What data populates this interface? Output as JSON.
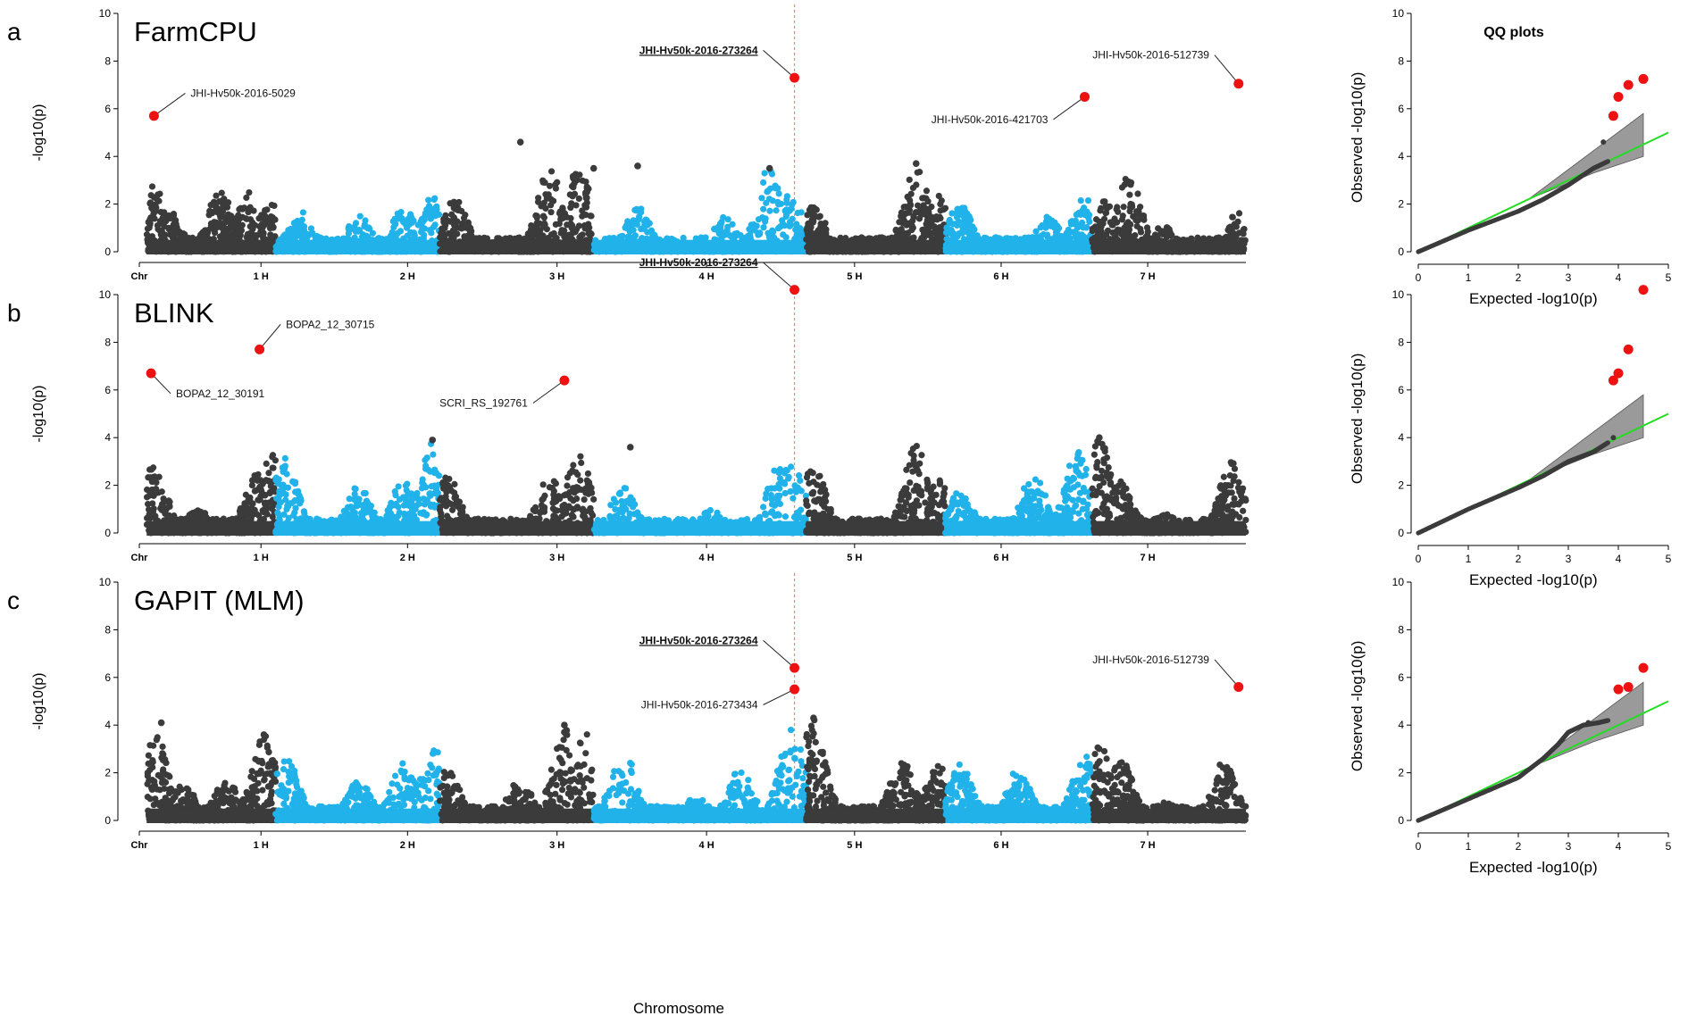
{
  "colors": {
    "odd": "#3b3b3b",
    "even": "#21b2ea",
    "sig": "#ee1111",
    "qq_line": "#22dd22",
    "qq_band": "#9a9a9a",
    "threshold": "#f08080"
  },
  "x_axis_label": "Chromosome",
  "qq_title": "QQ plots",
  "chart_data": [
    {
      "type": "scatter",
      "subtype": "manhattan",
      "letter": "a",
      "title": "FarmCPU",
      "ylabel": "-log10(p)",
      "ylim": [
        0,
        10
      ],
      "y_ticks": [
        0,
        2,
        4,
        6,
        8,
        10
      ],
      "x_ticks": [
        "Chr",
        "1 H",
        "2 H",
        "3 H",
        "4 H",
        "5 H",
        "6 H",
        "7 H"
      ],
      "threshold_x": 4.47,
      "chromosomes": [
        {
          "label": "1 H",
          "start": 0.05,
          "end": 0.93,
          "peaks": [
            [
              0.1,
              2.8
            ],
            [
              0.2,
              1.8
            ],
            [
              0.55,
              2.6
            ],
            [
              0.75,
              2.5
            ],
            [
              0.9,
              2.1
            ]
          ]
        },
        {
          "label": "2 H",
          "start": 0.93,
          "end": 2.05,
          "peaks": [
            [
              1.1,
              1.7
            ],
            [
              1.5,
              1.5
            ],
            [
              1.8,
              1.9
            ],
            [
              2.0,
              2.5
            ]
          ]
        },
        {
          "label": "3 H",
          "start": 2.05,
          "end": 3.1,
          "peaks": [
            [
              2.15,
              2.3
            ],
            [
              2.8,
              3.5
            ],
            [
              3.0,
              3.6
            ]
          ]
        },
        {
          "label": "4 H",
          "start": 3.1,
          "end": 4.55,
          "peaks": [
            [
              3.4,
              1.9
            ],
            [
              4.0,
              1.5
            ],
            [
              4.3,
              3.6
            ],
            [
              4.45,
              2.5
            ]
          ]
        },
        {
          "label": "5 H",
          "start": 4.55,
          "end": 5.5,
          "peaks": [
            [
              4.6,
              1.9
            ],
            [
              5.3,
              3.7
            ],
            [
              5.45,
              2.4
            ]
          ]
        },
        {
          "label": "6 H",
          "start": 5.5,
          "end": 6.5,
          "peaks": [
            [
              5.6,
              2.0
            ],
            [
              6.2,
              1.5
            ],
            [
              6.45,
              2.3
            ]
          ]
        },
        {
          "label": "7 H",
          "start": 6.5,
          "end": 7.55,
          "peaks": [
            [
              6.6,
              2.3
            ],
            [
              6.75,
              3.2
            ],
            [
              7.0,
              1.2
            ],
            [
              7.5,
              1.7
            ]
          ]
        }
      ],
      "highlighted": [
        {
          "x": 2.6,
          "y": 4.6,
          "sig": false
        },
        {
          "x": 3.1,
          "y": 3.5,
          "sig": false
        },
        {
          "x": 3.4,
          "y": 3.6,
          "sig": false
        },
        {
          "x": 4.3,
          "y": 3.5,
          "sig": false
        },
        {
          "x": 5.3,
          "y": 3.7,
          "sig": false
        }
      ],
      "significant": [
        {
          "name": "JHI-Hv50k-2016-5029",
          "x": 0.1,
          "y": 5.7,
          "bold": false,
          "label_anchor": "start",
          "lx": 0.35,
          "ly": 6.5
        },
        {
          "name": "JHI-Hv50k-2016-273264",
          "x": 4.47,
          "y": 7.3,
          "bold": true,
          "label_anchor": "end",
          "lx": 4.22,
          "ly": 8.3
        },
        {
          "name": "JHI-Hv50k-2016-421703",
          "x": 6.45,
          "y": 6.5,
          "bold": false,
          "label_anchor": "end",
          "lx": 6.2,
          "ly": 5.4
        },
        {
          "name": "JHI-Hv50k-2016-512739",
          "x": 7.5,
          "y": 7.05,
          "bold": false,
          "label_anchor": "end",
          "lx": 7.3,
          "ly": 8.1
        }
      ],
      "qq": {
        "xlim": [
          0,
          5
        ],
        "ylim": [
          0,
          10
        ],
        "x_ticks": [
          0,
          1,
          2,
          3,
          4,
          5
        ],
        "y_ticks": [
          0,
          2,
          4,
          6,
          8,
          10
        ],
        "xlabel": "Expected -log10(p)",
        "ylabel": "Observed -log10(p)",
        "curve": [
          [
            0,
            0
          ],
          [
            1,
            0.9
          ],
          [
            2,
            1.7
          ],
          [
            2.5,
            2.2
          ],
          [
            3,
            2.8
          ],
          [
            3.5,
            3.5
          ],
          [
            3.8,
            3.8
          ]
        ],
        "upper_points": [
          [
            3.9,
            5.7
          ],
          [
            4.0,
            6.5
          ],
          [
            4.2,
            7.0
          ],
          [
            4.5,
            7.2
          ],
          [
            3.7,
            4.6
          ]
        ],
        "sig_points": [
          [
            3.9,
            5.7
          ],
          [
            4.0,
            6.5
          ],
          [
            4.2,
            7.0
          ],
          [
            4.5,
            7.25
          ]
        ]
      }
    },
    {
      "type": "scatter",
      "subtype": "manhattan",
      "letter": "b",
      "title": "BLINK",
      "ylabel": "-log10(p)",
      "ylim": [
        0,
        10
      ],
      "y_ticks": [
        0,
        2,
        4,
        6,
        8,
        10
      ],
      "x_ticks": [
        "Chr",
        "1 H",
        "2 H",
        "3 H",
        "4 H",
        "5 H",
        "6 H",
        "7 H"
      ],
      "threshold_x": 4.47,
      "chromosomes": [
        {
          "label": "1 H",
          "start": 0.05,
          "end": 0.93,
          "peaks": [
            [
              0.1,
              2.9
            ],
            [
              0.4,
              1.0
            ],
            [
              0.8,
              2.5
            ],
            [
              0.9,
              3.3
            ]
          ]
        },
        {
          "label": "2 H",
          "start": 0.93,
          "end": 2.05,
          "peaks": [
            [
              1.0,
              3.2
            ],
            [
              1.5,
              2.0
            ],
            [
              1.8,
              2.2
            ],
            [
              2.0,
              3.8
            ]
          ]
        },
        {
          "label": "3 H",
          "start": 2.05,
          "end": 3.1,
          "peaks": [
            [
              2.1,
              2.5
            ],
            [
              2.8,
              2.5
            ],
            [
              3.0,
              3.6
            ]
          ]
        },
        {
          "label": "4 H",
          "start": 3.1,
          "end": 4.55,
          "peaks": [
            [
              3.3,
              2.0
            ],
            [
              3.9,
              1.0
            ],
            [
              4.35,
              3.0
            ],
            [
              4.45,
              3.1
            ]
          ]
        },
        {
          "label": "5 H",
          "start": 4.55,
          "end": 5.5,
          "peaks": [
            [
              4.6,
              2.8
            ],
            [
              5.3,
              3.7
            ],
            [
              5.45,
              2.3
            ]
          ]
        },
        {
          "label": "6 H",
          "start": 5.5,
          "end": 6.5,
          "peaks": [
            [
              5.6,
              1.8
            ],
            [
              6.1,
              2.5
            ],
            [
              6.4,
              3.5
            ]
          ]
        },
        {
          "label": "7 H",
          "start": 6.5,
          "end": 7.55,
          "peaks": [
            [
              6.55,
              4.0
            ],
            [
              6.7,
              2.2
            ],
            [
              7.0,
              0.8
            ],
            [
              7.45,
              3.0
            ]
          ]
        }
      ],
      "highlighted": [
        {
          "x": 2.0,
          "y": 3.9,
          "sig": false
        },
        {
          "x": 3.35,
          "y": 3.6,
          "sig": false
        },
        {
          "x": 6.55,
          "y": 4.0,
          "sig": false
        }
      ],
      "significant": [
        {
          "name": "BOPA2_12_30191",
          "x": 0.08,
          "y": 6.7,
          "bold": false,
          "label_anchor": "start",
          "lx": 0.25,
          "ly": 5.7
        },
        {
          "name": "BOPA2_12_30715",
          "x": 0.82,
          "y": 7.7,
          "bold": false,
          "label_anchor": "start",
          "lx": 1.0,
          "ly": 8.6
        },
        {
          "name": "SCRI_RS_192761",
          "x": 2.9,
          "y": 6.4,
          "bold": false,
          "label_anchor": "end",
          "lx": 2.65,
          "ly": 5.3
        },
        {
          "name": "JHI-Hv50k-2016-273264",
          "x": 4.47,
          "y": 10.2,
          "bold": true,
          "label_anchor": "end",
          "lx": 4.22,
          "ly": 11.2
        }
      ],
      "qq": {
        "xlim": [
          0,
          5
        ],
        "ylim": [
          0,
          10
        ],
        "x_ticks": [
          0,
          1,
          2,
          3,
          4,
          5
        ],
        "y_ticks": [
          0,
          2,
          4,
          6,
          8,
          10
        ],
        "xlabel": "Expected -log10(p)",
        "ylabel": "Observed -log10(p)",
        "curve": [
          [
            0,
            0
          ],
          [
            1,
            1.0
          ],
          [
            2,
            1.9
          ],
          [
            2.5,
            2.4
          ],
          [
            3,
            3.0
          ],
          [
            3.5,
            3.4
          ],
          [
            3.8,
            3.8
          ]
        ],
        "upper_points": [
          [
            3.9,
            4.0
          ]
        ],
        "sig_points": [
          [
            3.9,
            6.4
          ],
          [
            4.0,
            6.7
          ],
          [
            4.2,
            7.7
          ],
          [
            4.5,
            10.2
          ]
        ]
      }
    },
    {
      "type": "scatter",
      "subtype": "manhattan",
      "letter": "c",
      "title": "GAPIT (MLM)",
      "ylabel": "-log10(p)",
      "ylim": [
        0,
        10
      ],
      "y_ticks": [
        0,
        2,
        4,
        6,
        8,
        10
      ],
      "x_ticks": [
        "Chr",
        "1 H",
        "2 H",
        "3 H",
        "4 H",
        "5 H",
        "6 H",
        "7 H"
      ],
      "threshold_x": 4.47,
      "chromosomes": [
        {
          "label": "1 H",
          "start": 0.05,
          "end": 0.93,
          "peaks": [
            [
              0.1,
              4.1
            ],
            [
              0.3,
              1.5
            ],
            [
              0.6,
              1.8
            ],
            [
              0.85,
              3.6
            ]
          ]
        },
        {
          "label": "2 H",
          "start": 0.93,
          "end": 2.05,
          "peaks": [
            [
              1.0,
              2.8
            ],
            [
              1.5,
              1.7
            ],
            [
              1.8,
              2.5
            ],
            [
              2.0,
              3.3
            ]
          ]
        },
        {
          "label": "3 H",
          "start": 2.05,
          "end": 3.1,
          "peaks": [
            [
              2.1,
              2.2
            ],
            [
              2.6,
              1.8
            ],
            [
              2.9,
              3.9
            ],
            [
              3.05,
              3.8
            ]
          ]
        },
        {
          "label": "4 H",
          "start": 3.1,
          "end": 4.55,
          "peaks": [
            [
              3.3,
              3.0
            ],
            [
              3.8,
              1.0
            ],
            [
              4.1,
              2.2
            ],
            [
              4.45,
              4.0
            ]
          ]
        },
        {
          "label": "5 H",
          "start": 4.55,
          "end": 5.5,
          "peaks": [
            [
              4.6,
              4.3
            ],
            [
              5.2,
              2.6
            ],
            [
              5.45,
              2.3
            ]
          ]
        },
        {
          "label": "6 H",
          "start": 5.5,
          "end": 6.5,
          "peaks": [
            [
              5.6,
              2.4
            ],
            [
              6.0,
              2.2
            ],
            [
              6.45,
              3.0
            ]
          ]
        },
        {
          "label": "7 H",
          "start": 6.5,
          "end": 7.55,
          "peaks": [
            [
              6.55,
              3.3
            ],
            [
              6.7,
              2.6
            ],
            [
              7.0,
              0.8
            ],
            [
              7.4,
              2.5
            ]
          ]
        }
      ],
      "highlighted": [
        {
          "x": 0.15,
          "y": 4.1,
          "sig": false
        },
        {
          "x": 0.85,
          "y": 3.6,
          "sig": false
        },
        {
          "x": 2.9,
          "y": 4.0,
          "sig": false
        },
        {
          "x": 4.6,
          "y": 4.3,
          "sig": false
        }
      ],
      "significant": [
        {
          "name": "JHI-Hv50k-2016-273264",
          "x": 4.47,
          "y": 6.4,
          "bold": true,
          "label_anchor": "end",
          "lx": 4.22,
          "ly": 7.4
        },
        {
          "name": "JHI-Hv50k-2016-273434",
          "x": 4.47,
          "y": 5.5,
          "bold": false,
          "label_anchor": "end",
          "lx": 4.22,
          "ly": 4.7
        },
        {
          "name": "JHI-Hv50k-2016-512739",
          "x": 7.5,
          "y": 5.6,
          "bold": false,
          "label_anchor": "end",
          "lx": 7.3,
          "ly": 6.6
        }
      ],
      "qq": {
        "xlim": [
          0,
          5
        ],
        "ylim": [
          0,
          10
        ],
        "x_ticks": [
          0,
          1,
          2,
          3,
          4,
          5
        ],
        "y_ticks": [
          0,
          2,
          4,
          6,
          8,
          10
        ],
        "xlabel": "Expected -log10(p)",
        "ylabel": "Observed -log10(p)",
        "curve": [
          [
            0,
            0
          ],
          [
            1,
            0.9
          ],
          [
            2,
            1.8
          ],
          [
            2.5,
            2.6
          ],
          [
            2.8,
            3.2
          ],
          [
            3,
            3.7
          ],
          [
            3.3,
            4.0
          ],
          [
            3.6,
            4.1
          ],
          [
            3.8,
            4.2
          ]
        ],
        "upper_points": [
          [
            3.4,
            4.1
          ]
        ],
        "sig_points": [
          [
            4.0,
            5.5
          ],
          [
            4.2,
            5.6
          ],
          [
            4.5,
            6.4
          ]
        ]
      }
    }
  ]
}
